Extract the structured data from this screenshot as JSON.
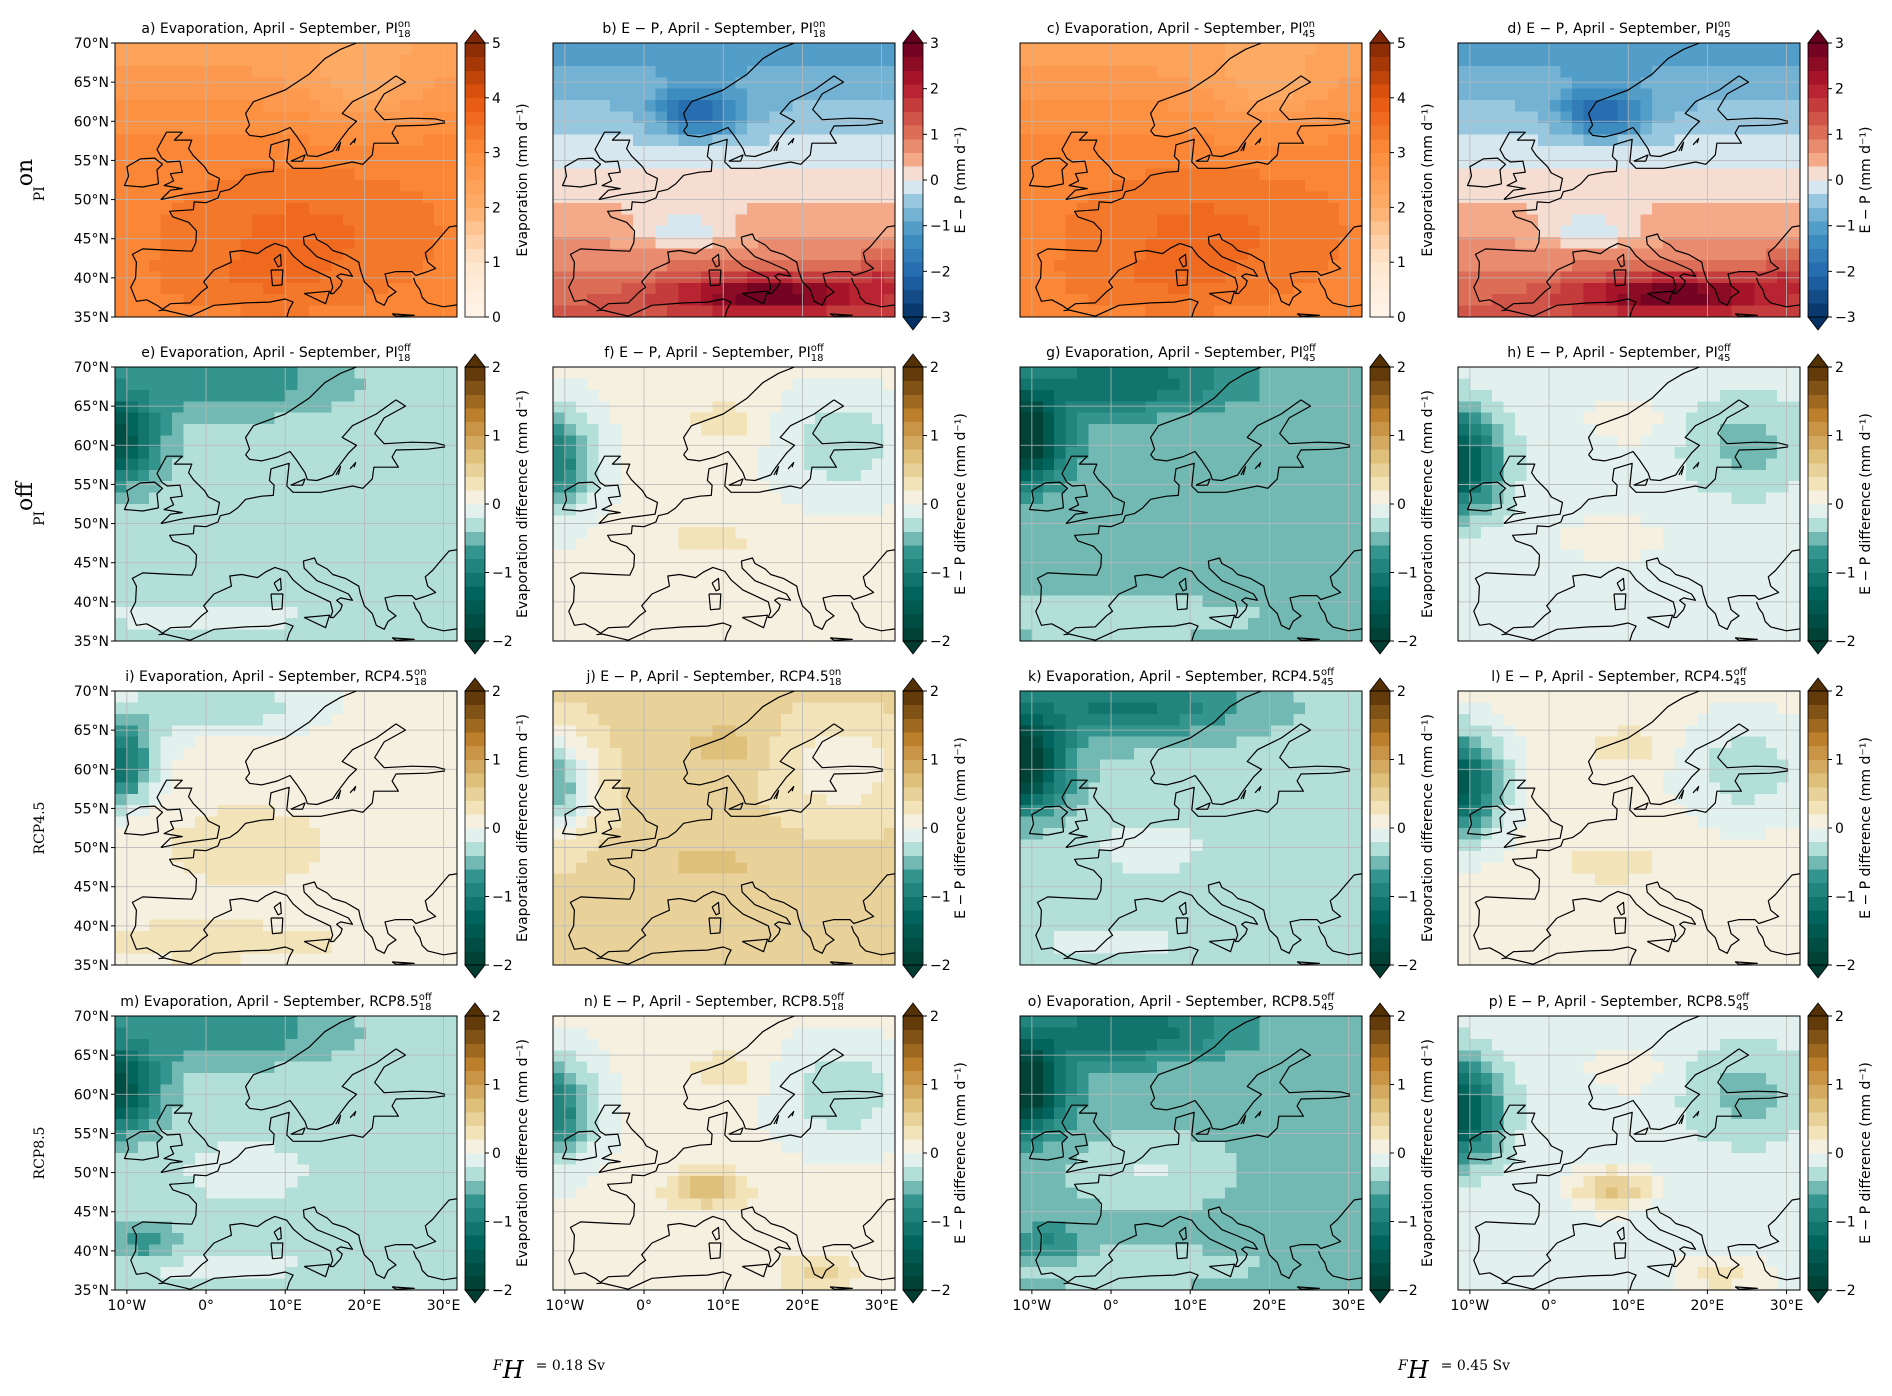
{
  "map_extent": {
    "lon": [
      -11.5,
      31.7
    ],
    "lat": [
      35,
      70
    ]
  },
  "lat_ticks": [
    {
      "value": 35,
      "label": "35°N"
    },
    {
      "value": 40,
      "label": "40°N"
    },
    {
      "value": 45,
      "label": "45°N"
    },
    {
      "value": 50,
      "label": "50°N"
    },
    {
      "value": 55,
      "label": "55°N"
    },
    {
      "value": 60,
      "label": "60°N"
    },
    {
      "value": 65,
      "label": "65°N"
    },
    {
      "value": 70,
      "label": "70°N"
    }
  ],
  "lon_ticks": [
    {
      "value": -10,
      "label": "10°W"
    },
    {
      "value": 0,
      "label": "0°"
    },
    {
      "value": 10,
      "label": "10°E"
    },
    {
      "value": 20,
      "label": "20°E"
    },
    {
      "value": 30,
      "label": "30°E"
    }
  ],
  "row_labels": [
    {
      "text": "PI",
      "sup": "on"
    },
    {
      "text": "PI",
      "sup": "off"
    },
    {
      "text": "RCP4.5"
    },
    {
      "text": "RCP8.5"
    }
  ],
  "column_labels": [
    {
      "var": "F",
      "sub": "H",
      "text": "= 0.18 Sv"
    },
    {
      "var": "F",
      "sub": "H",
      "text": "= 0.45 Sv"
    }
  ],
  "panels": [
    {
      "title": "a) Evaporation, April - September, PI",
      "sup": "on",
      "sub": "18",
      "colorbar": {
        "label": "Evaporation (mm d⁻¹)",
        "lim": [
          0,
          5
        ],
        "ticks": [
          0,
          1,
          2,
          3,
          4,
          5
        ],
        "cmap": "Oranges",
        "extend": "max"
      }
    },
    {
      "title": "b) E − P, April - September, PI",
      "sup": "on",
      "sub": "18",
      "colorbar": {
        "label": "E − P (mm d⁻¹)",
        "lim": [
          -3,
          3
        ],
        "ticks": [
          {
            "value": -3,
            "label": "−3"
          },
          {
            "value": -2,
            "label": "−2"
          },
          {
            "value": -1,
            "label": "−1"
          },
          0,
          1,
          2,
          3
        ],
        "cmap": "RdBu_r",
        "extend": "both"
      }
    },
    {
      "title": "c) Evaporation, April - September, PI",
      "sup": "on",
      "sub": "45",
      "colorbar": {
        "label": "Evaporation (mm d⁻¹)",
        "lim": [
          0,
          5
        ],
        "ticks": [
          0,
          1,
          2,
          3,
          4,
          5
        ],
        "cmap": "Oranges",
        "extend": "max"
      }
    },
    {
      "title": "d) E − P, April - September, PI",
      "sup": "on",
      "sub": "45",
      "colorbar": {
        "label": "E − P (mm d⁻¹)",
        "lim": [
          -3,
          3
        ],
        "ticks": [
          {
            "value": -3,
            "label": "−3"
          },
          {
            "value": -2,
            "label": "−2"
          },
          {
            "value": -1,
            "label": "−1"
          },
          0,
          1,
          2,
          3
        ],
        "cmap": "RdBu_r",
        "extend": "both"
      }
    },
    {
      "title": "e) Evaporation, April - September, PI",
      "sup": "off",
      "sub": "18",
      "colorbar": {
        "label": "Evaporation difference (mm d⁻¹)",
        "lim": [
          -2,
          2
        ],
        "ticks": [
          {
            "value": -2,
            "label": "−2"
          },
          {
            "value": -1,
            "label": "−1"
          },
          0,
          1,
          2
        ],
        "cmap": "BrBG",
        "extend": "both"
      }
    },
    {
      "title": "f) E − P, April - September, PI",
      "sup": "off",
      "sub": "18",
      "colorbar": {
        "label": "E − P difference (mm d⁻¹)",
        "lim": [
          -2,
          2
        ],
        "ticks": [
          {
            "value": -2,
            "label": "−2"
          },
          {
            "value": -1,
            "label": "−1"
          },
          0,
          1,
          2
        ],
        "cmap": "BrBG",
        "extend": "both"
      }
    },
    {
      "title": "g) Evaporation, April - September, PI",
      "sup": "off",
      "sub": "45",
      "colorbar": {
        "label": "Evaporation difference (mm d⁻¹)",
        "lim": [
          -2,
          2
        ],
        "ticks": [
          {
            "value": -2,
            "label": "−2"
          },
          {
            "value": -1,
            "label": "−1"
          },
          0,
          1,
          2
        ],
        "cmap": "BrBG",
        "extend": "both"
      }
    },
    {
      "title": "h) E − P, April - September, PI",
      "sup": "off",
      "sub": "45",
      "colorbar": {
        "label": "E − P difference (mm d⁻¹)",
        "lim": [
          -2,
          2
        ],
        "ticks": [
          {
            "value": -2,
            "label": "−2"
          },
          {
            "value": -1,
            "label": "−1"
          },
          0,
          1,
          2
        ],
        "cmap": "BrBG",
        "extend": "both"
      }
    },
    {
      "title": "i) Evaporation, April - September, RCP4.5",
      "sup": "on",
      "sub": "18",
      "colorbar": {
        "label": "Evaporation difference (mm d⁻¹)",
        "lim": [
          -2,
          2
        ],
        "ticks": [
          {
            "value": -2,
            "label": "−2"
          },
          {
            "value": -1,
            "label": "−1"
          },
          0,
          1,
          2
        ],
        "cmap": "BrBG",
        "extend": "both"
      }
    },
    {
      "title": "j) E − P, April - September, RCP4.5",
      "sup": "on",
      "sub": "18",
      "colorbar": {
        "label": "E − P difference (mm d⁻¹)",
        "lim": [
          -2,
          2
        ],
        "ticks": [
          {
            "value": -2,
            "label": "−2"
          },
          {
            "value": -1,
            "label": "−1"
          },
          0,
          1,
          2
        ],
        "cmap": "BrBG",
        "extend": "both"
      }
    },
    {
      "title": "k) Evaporation, April - September, RCP4.5",
      "sup": "off",
      "sub": "45",
      "colorbar": {
        "label": "Evaporation difference (mm d⁻¹)",
        "lim": [
          -2,
          2
        ],
        "ticks": [
          {
            "value": -2,
            "label": "−2"
          },
          {
            "value": -1,
            "label": "−1"
          },
          0,
          1,
          2
        ],
        "cmap": "BrBG",
        "extend": "both"
      }
    },
    {
      "title": "l) E − P, April - September, RCP4.5",
      "sup": "off",
      "sub": "45",
      "colorbar": {
        "label": "E − P difference (mm d⁻¹)",
        "lim": [
          -2,
          2
        ],
        "ticks": [
          {
            "value": -2,
            "label": "−2"
          },
          {
            "value": -1,
            "label": "−1"
          },
          0,
          1,
          2
        ],
        "cmap": "BrBG",
        "extend": "both"
      }
    },
    {
      "title": "m) Evaporation, April - September, RCP8.5",
      "sup": "off",
      "sub": "18",
      "colorbar": {
        "label": "Evaporation difference (mm d⁻¹)",
        "lim": [
          -2,
          2
        ],
        "ticks": [
          {
            "value": -2,
            "label": "−2"
          },
          {
            "value": -1,
            "label": "−1"
          },
          0,
          1,
          2
        ],
        "cmap": "BrBG",
        "extend": "both"
      }
    },
    {
      "title": "n) E − P, April - September, RCP8.5",
      "sup": "off",
      "sub": "18",
      "colorbar": {
        "label": "E − P difference (mm d⁻¹)",
        "lim": [
          -2,
          2
        ],
        "ticks": [
          {
            "value": -2,
            "label": "−2"
          },
          {
            "value": -1,
            "label": "−1"
          },
          0,
          1,
          2
        ],
        "cmap": "BrBG",
        "extend": "both"
      }
    },
    {
      "title": "o) Evaporation, April - September, RCP8.5",
      "sup": "off",
      "sub": "45",
      "colorbar": {
        "label": "Evaporation difference (mm d⁻¹)",
        "lim": [
          -2,
          2
        ],
        "ticks": [
          {
            "value": -2,
            "label": "−2"
          },
          {
            "value": -1,
            "label": "−1"
          },
          0,
          1,
          2
        ],
        "cmap": "BrBG",
        "extend": "both"
      }
    },
    {
      "title": "p) E − P, April - September, RCP8.5",
      "sup": "off",
      "sub": "45",
      "colorbar": {
        "label": "E − P difference (mm d⁻¹)",
        "lim": [
          -2,
          2
        ],
        "ticks": [
          {
            "value": -2,
            "label": "−2"
          },
          {
            "value": -1,
            "label": "−1"
          },
          0,
          1,
          2
        ],
        "cmap": "BrBG",
        "extend": "both"
      }
    }
  ]
}
